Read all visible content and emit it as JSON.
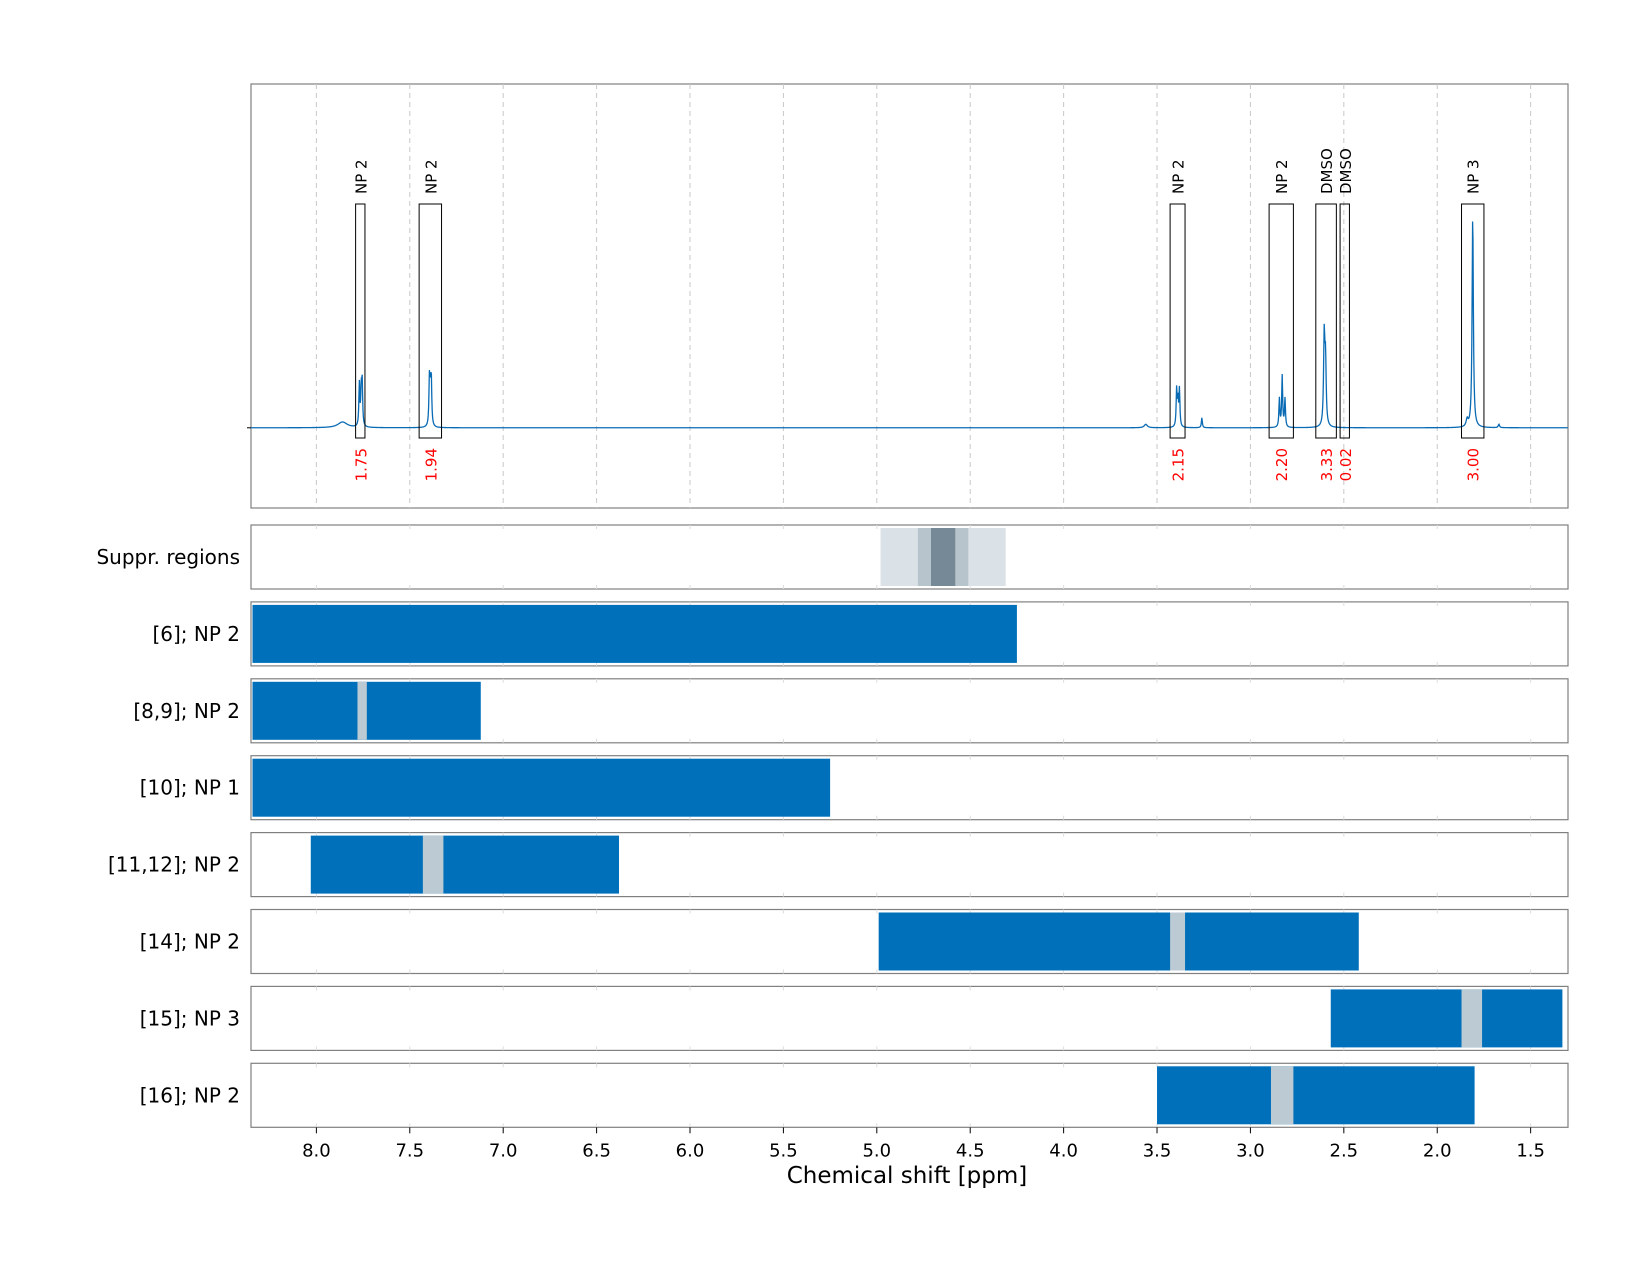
{
  "chart_data": {
    "type": "nmr-spectrum-with-range-tracks",
    "xlabel": "Chemical shift [ppm]",
    "xlim": [
      8.35,
      1.3
    ],
    "x_reversed": true,
    "xticks": [
      8.0,
      7.5,
      7.0,
      6.5,
      6.0,
      5.5,
      5.0,
      4.5,
      4.0,
      3.5,
      3.0,
      2.5,
      2.0,
      1.5
    ],
    "xtick_labels": [
      "8.0",
      "7.5",
      "7.0",
      "6.5",
      "6.0",
      "5.5",
      "5.0",
      "4.5",
      "4.0",
      "3.5",
      "3.0",
      "2.5",
      "2.0",
      "1.5"
    ],
    "grid": true,
    "spectrum": {
      "baseline": 0,
      "ylim": [
        -0.28,
        1.2
      ],
      "peaks": [
        {
          "ppm": 7.86,
          "height": 0.02,
          "width": 0.03
        },
        {
          "ppm": 7.77,
          "height": 0.15,
          "width": 0.003
        },
        {
          "ppm": 7.755,
          "height": 0.15,
          "width": 0.003
        },
        {
          "ppm": 7.76,
          "height": 0.12,
          "width": 0.003
        },
        {
          "ppm": 7.395,
          "height": 0.15,
          "width": 0.003
        },
        {
          "ppm": 7.385,
          "height": 0.15,
          "width": 0.003
        },
        {
          "ppm": 7.39,
          "height": 0.1,
          "width": 0.004
        },
        {
          "ppm": 3.56,
          "height": 0.012,
          "width": 0.01
        },
        {
          "ppm": 3.395,
          "height": 0.13,
          "width": 0.003
        },
        {
          "ppm": 3.38,
          "height": 0.13,
          "width": 0.003
        },
        {
          "ppm": 3.388,
          "height": 0.09,
          "width": 0.003
        },
        {
          "ppm": 3.26,
          "height": 0.035,
          "width": 0.003
        },
        {
          "ppm": 2.845,
          "height": 0.1,
          "width": 0.003
        },
        {
          "ppm": 2.83,
          "height": 0.18,
          "width": 0.003
        },
        {
          "ppm": 2.815,
          "height": 0.1,
          "width": 0.003
        },
        {
          "ppm": 2.605,
          "height": 0.31,
          "width": 0.004
        },
        {
          "ppm": 2.598,
          "height": 0.22,
          "width": 0.004
        },
        {
          "ppm": 1.84,
          "height": 0.025,
          "width": 0.006
        },
        {
          "ppm": 1.81,
          "height": 0.74,
          "width": 0.004
        },
        {
          "ppm": 1.67,
          "height": 0.012,
          "width": 0.004
        }
      ],
      "annotations": [
        {
          "label": "NP 2",
          "integral": "1.75",
          "x_from": 7.79,
          "x_to": 7.74
        },
        {
          "label": "NP 2",
          "integral": "1.94",
          "x_from": 7.45,
          "x_to": 7.33
        },
        {
          "label": "NP 2",
          "integral": "2.15",
          "x_from": 3.43,
          "x_to": 3.35
        },
        {
          "label": "NP 2",
          "integral": "2.20",
          "x_from": 2.9,
          "x_to": 2.77
        },
        {
          "label": "DMSO",
          "integral": "3.33",
          "x_from": 2.65,
          "x_to": 2.54
        },
        {
          "label": "DMSO",
          "integral": "0.02",
          "x_from": 2.52,
          "x_to": 2.47
        },
        {
          "label": "NP 3",
          "integral": "3.00",
          "x_from": 1.87,
          "x_to": 1.75
        }
      ],
      "label_color": "#000000",
      "integral_color": "#ff0000",
      "line_color": "#0a6bb5"
    },
    "tracks": [
      {
        "label": "Suppr. regions",
        "kind": "suppression",
        "segments": [
          {
            "from": 4.98,
            "to": 4.31,
            "shade": "light"
          },
          {
            "from": 4.78,
            "to": 4.51,
            "shade": "mid"
          },
          {
            "from": 4.71,
            "to": 4.58,
            "shade": "dark"
          }
        ]
      },
      {
        "label": "[6]; NP 2",
        "kind": "range",
        "from": 8.35,
        "to": 4.25,
        "gaps": []
      },
      {
        "label": "[8,9]; NP 2",
        "kind": "range",
        "from": 8.35,
        "to": 7.12,
        "gaps": [
          {
            "from": 7.78,
            "to": 7.73
          }
        ]
      },
      {
        "label": "[10]; NP 1",
        "kind": "range",
        "from": 8.35,
        "to": 5.25,
        "gaps": []
      },
      {
        "label": "[11,12]; NP 2",
        "kind": "range",
        "from": 8.03,
        "to": 6.38,
        "gaps": [
          {
            "from": 7.43,
            "to": 7.32
          }
        ]
      },
      {
        "label": "[14]; NP 2",
        "kind": "range",
        "from": 4.99,
        "to": 2.42,
        "gaps": [
          {
            "from": 3.43,
            "to": 3.35
          }
        ]
      },
      {
        "label": "[15]; NP 3",
        "kind": "range",
        "from": 2.57,
        "to": 1.33,
        "gaps": [
          {
            "from": 1.87,
            "to": 1.76
          }
        ]
      },
      {
        "label": "[16]; NP 2",
        "kind": "range",
        "from": 3.5,
        "to": 1.8,
        "gaps": [
          {
            "from": 2.89,
            "to": 2.77
          }
        ]
      }
    ],
    "colors": {
      "range_fill": "#0070bb",
      "gap_fill": "#bccad3",
      "suppr_light": "#dae2e8",
      "suppr_mid": "#b8c4cc",
      "suppr_dark": "#768997",
      "frame": "#808080",
      "grid": "#c8c8c8"
    }
  }
}
